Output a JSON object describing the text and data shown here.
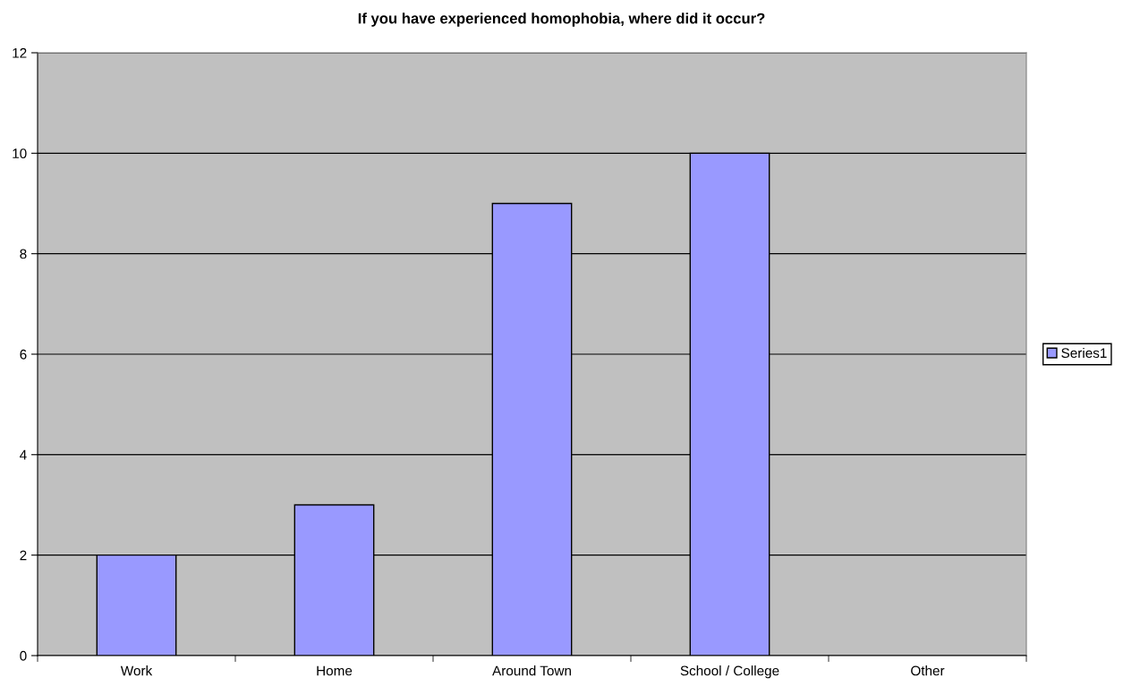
{
  "chart_data": {
    "type": "bar",
    "title": "If you have experienced homophobia, where did it occur?",
    "categories": [
      "Work",
      "Home",
      "Around Town",
      "School / College",
      "Other"
    ],
    "series": [
      {
        "name": "Series1",
        "color": "#9999ff",
        "values": [
          2,
          3,
          9,
          10,
          0
        ]
      }
    ],
    "ylim": [
      0,
      12
    ],
    "yticks": [
      0,
      2,
      4,
      6,
      8,
      10,
      12
    ],
    "grid": "y",
    "legend": "right"
  }
}
